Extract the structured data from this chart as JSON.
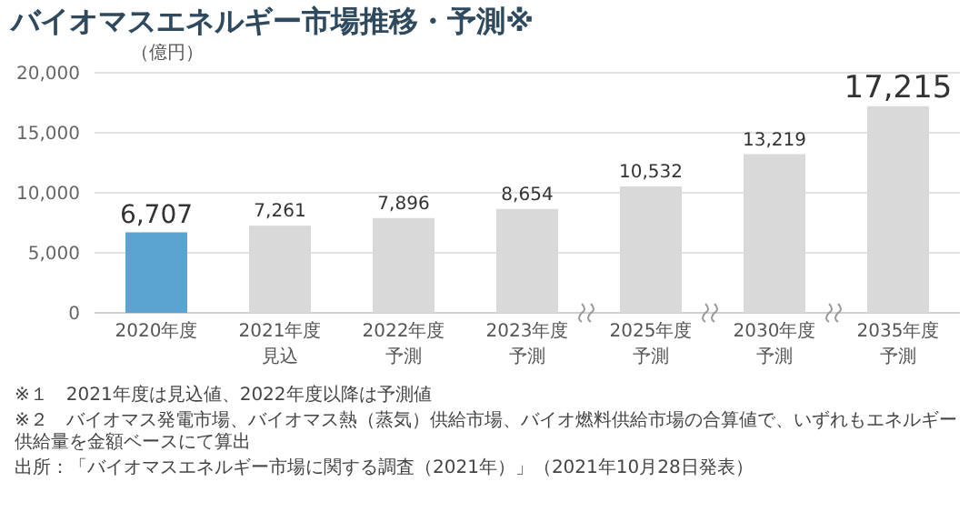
{
  "chart_data": {
    "type": "bar",
    "title": "バイオマスエネルギー市場推移・予測※",
    "ylabel": "（億円）",
    "categories": [
      "2020年度",
      "2021年度見込",
      "2022年度予測",
      "2023年度予測",
      "2025年度予測",
      "2030年度予測",
      "2035年度予測"
    ],
    "value_labels": [
      "6,707",
      "7,261",
      "7,896",
      "8,654",
      "10,532",
      "13,219",
      "17,215"
    ],
    "values": [
      6707,
      7261,
      7896,
      8654,
      10532,
      13219,
      17215
    ],
    "colors": [
      "#5ba3d0",
      "#d9d9d9",
      "#d9d9d9",
      "#d9d9d9",
      "#d9d9d9",
      "#d9d9d9",
      "#d9d9d9"
    ],
    "ylim": [
      0,
      20000
    ],
    "yticks": [
      0,
      {
        "value": 5000,
        "label": "5,000"
      },
      {
        "value": 10000,
        "label": "10,000"
      },
      {
        "value": 15000,
        "label": "15,000"
      },
      {
        "value": 20000,
        "label": "20,000"
      }
    ],
    "grid": "y",
    "annotations": [
      "※１　2021年度は見込値、2022年度以降は予測値",
      "※２　バイオマス発電市場、バイオマス熱（蒸気）供給市場、バイオ燃料供給市場の合算値で、いずれもエネルギー供給量を金額ベースにて算出",
      "出所：「バイオマスエネルギー市場に関する調査（2021年）」（2021年10月28日発表）"
    ]
  }
}
